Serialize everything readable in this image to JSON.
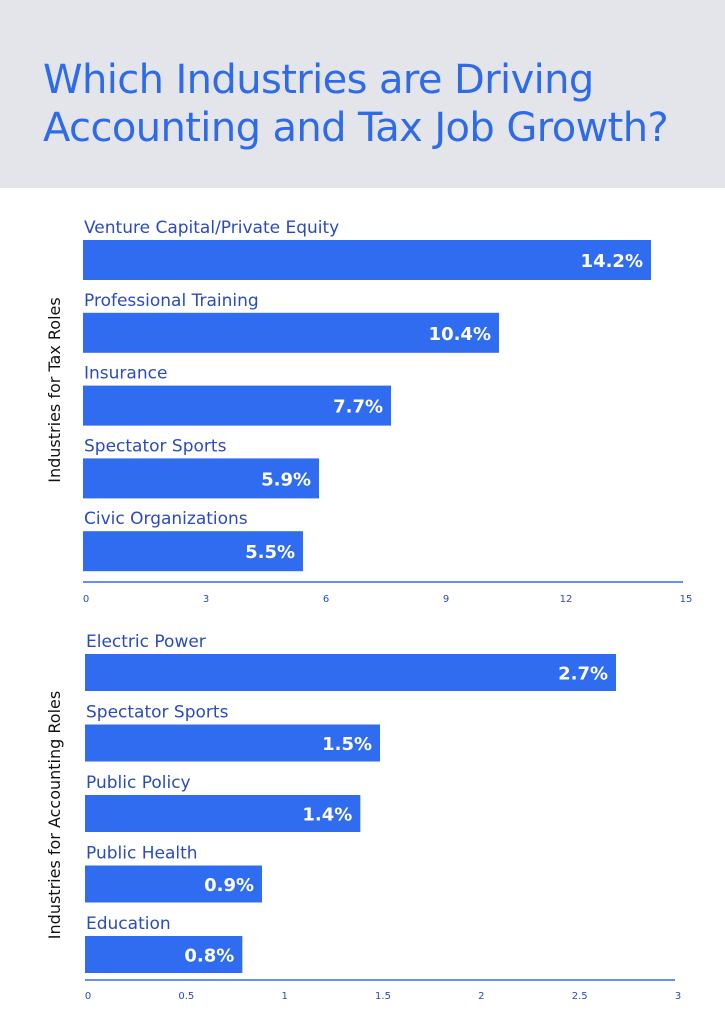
{
  "title": "Which Industries are Driving Accounting and Tax Job Growth?",
  "colors": {
    "bar": "#2f6cf0",
    "header_bg": "#e3e5ea",
    "title": "#2f6be8",
    "axis": "#2f6cf0"
  },
  "chart_data": [
    {
      "type": "bar",
      "orientation": "horizontal",
      "ylabel": "Industries for Tax Roles",
      "categories": [
        "Venture Capital/Private Equity",
        "Professional Training",
        "Insurance",
        "Spectator Sports",
        "Civic Organizations"
      ],
      "values": [
        14.2,
        10.4,
        7.7,
        5.9,
        5.5
      ],
      "value_labels": [
        "14.2%",
        "10.4%",
        "7.7%",
        "5.9%",
        "5.5%"
      ],
      "xlim": [
        0,
        15
      ],
      "xticks": [
        "0",
        "3",
        "6",
        "9",
        "12",
        "15"
      ],
      "grid": false
    },
    {
      "type": "bar",
      "orientation": "horizontal",
      "ylabel": "Industries for Accounting Roles",
      "categories": [
        "Electric Power",
        "Spectator Sports",
        "Public Policy",
        "Public Health",
        "Education"
      ],
      "values": [
        2.7,
        1.5,
        1.4,
        0.9,
        0.8
      ],
      "value_labels": [
        "2.7%",
        "1.5%",
        "1.4%",
        "0.9%",
        "0.8%"
      ],
      "xlim": [
        0,
        3
      ],
      "xticks": [
        "0",
        "0.5",
        "1",
        "1.5",
        "2",
        "2.5",
        "3"
      ],
      "grid": false
    }
  ]
}
